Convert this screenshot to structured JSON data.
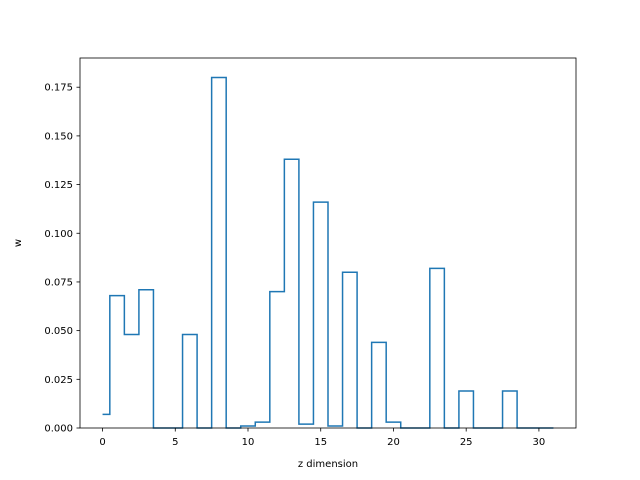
{
  "chart_data": {
    "type": "line",
    "drawstyle": "steps-mid",
    "xlabel": "z dimension",
    "ylabel": "w",
    "xlim": [
      -1.55,
      32.55
    ],
    "ylim": [
      0,
      0.19
    ],
    "xticks": [
      0,
      5,
      10,
      15,
      20,
      25,
      30
    ],
    "xtick_labels": [
      "0",
      "5",
      "10",
      "15",
      "20",
      "25",
      "30"
    ],
    "yticks": [
      0,
      0.025,
      0.05,
      0.075,
      0.1,
      0.125,
      0.15,
      0.175
    ],
    "ytick_labels": [
      "0.000",
      "0.025",
      "0.050",
      "0.075",
      "0.100",
      "0.125",
      "0.150",
      "0.175"
    ],
    "grid": false,
    "series": [
      {
        "color": "#1f77b4",
        "x": [
          0,
          1,
          2,
          3,
          4,
          5,
          6,
          7,
          8,
          9,
          10,
          11,
          12,
          13,
          14,
          15,
          16,
          17,
          18,
          19,
          20,
          21,
          22,
          23,
          24,
          25,
          26,
          27,
          28,
          29,
          30,
          31
        ],
        "y": [
          0.007,
          0.068,
          0.048,
          0.071,
          0.0,
          0.0,
          0.048,
          0.0,
          0.18,
          0.0,
          0.001,
          0.003,
          0.07,
          0.138,
          0.002,
          0.116,
          0.001,
          0.08,
          0.0,
          0.044,
          0.003,
          0.0,
          0.0,
          0.082,
          0.0,
          0.019,
          0.0,
          0.0,
          0.019,
          0.0,
          0.0,
          0.0
        ]
      }
    ]
  }
}
